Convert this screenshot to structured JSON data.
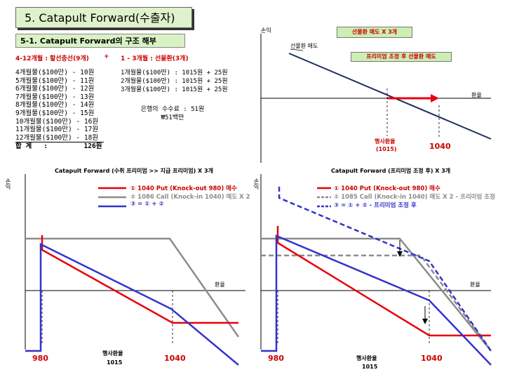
{
  "title": "5. Catapult Forward(수출자)",
  "subtitle": "5-1. Catapult Forward의 구조 해부",
  "structure_header": {
    "left": "4-12개월 : 할선충선(9개)",
    "plus": "+",
    "right": "1 - 3개월 : 선물환(3개)"
  },
  "list_left": [
    "4개월물($100만) - 10원",
    "5개월물($100만) - 11원",
    "6개월물($100만) - 12원",
    "7개월물($100만) - 13원",
    "8개월물($100만) - 14원",
    "9개월물($100만) - 15원",
    "10개월물($100만) - 16원",
    "11개월물($100만) - 17원",
    "12개월물($100만) - 18원"
  ],
  "list_left_total": "합 계   :         126원",
  "list_right": [
    "1개월물($100만) : 1015원 + 25원",
    "2개월물($100만) : 1015원 + 25원",
    "3개월물($100만) : 1015원 + 25원"
  ],
  "fee": {
    "line1": "은행의 수수료 : 51원",
    "line2": "₩51백만"
  },
  "top_chart": {
    "ylabel": "손익",
    "xlabel": "환율",
    "tag1": "선물환 매도 X 3개",
    "label_forward": "선물환 매도",
    "tag2": "프리미엄 조정 후 선물환 매도",
    "strike_label": "행사환율",
    "strike_value": "(1015)",
    "value_1040": "1040",
    "colors": {
      "line": "#1a2f5a",
      "arrow": "#e8000b"
    }
  },
  "bottom_left": {
    "title": "Catapult Forward (수취 프리미엄 >> 지급 프리미엄) X 3개",
    "ylabel": "손익",
    "xlabel": "환율",
    "legend": [
      "① 1040 Put (Knock-out 980) 매수",
      "② 1086 Call (Knock-in 1040) 매도 X 2",
      "③ = ① + ②"
    ],
    "x_980": "980",
    "strike_label": "행사환율",
    "strike_value": "1015",
    "x_1040": "1040"
  },
  "bottom_right": {
    "title": "Catapult Forward (프리미엄 조정 후) X 3개",
    "ylabel": "손익",
    "xlabel": "환율",
    "legend": [
      "① 1040 Put (Knock-out 980) 매수",
      "② 1085 Call (Knock-in 1040) 매도 X 2 - 프리미엄 조정",
      "③ = ① + ② - 프리미엄 조정 후"
    ],
    "x_980": "980",
    "strike_label": "행사환율",
    "strike_value": "1015",
    "x_1040": "1040"
  },
  "colors": {
    "red": "#e8000b",
    "grey": "#8c8c8c",
    "blue": "#3333cc",
    "title_bg": "#dff2cc"
  }
}
